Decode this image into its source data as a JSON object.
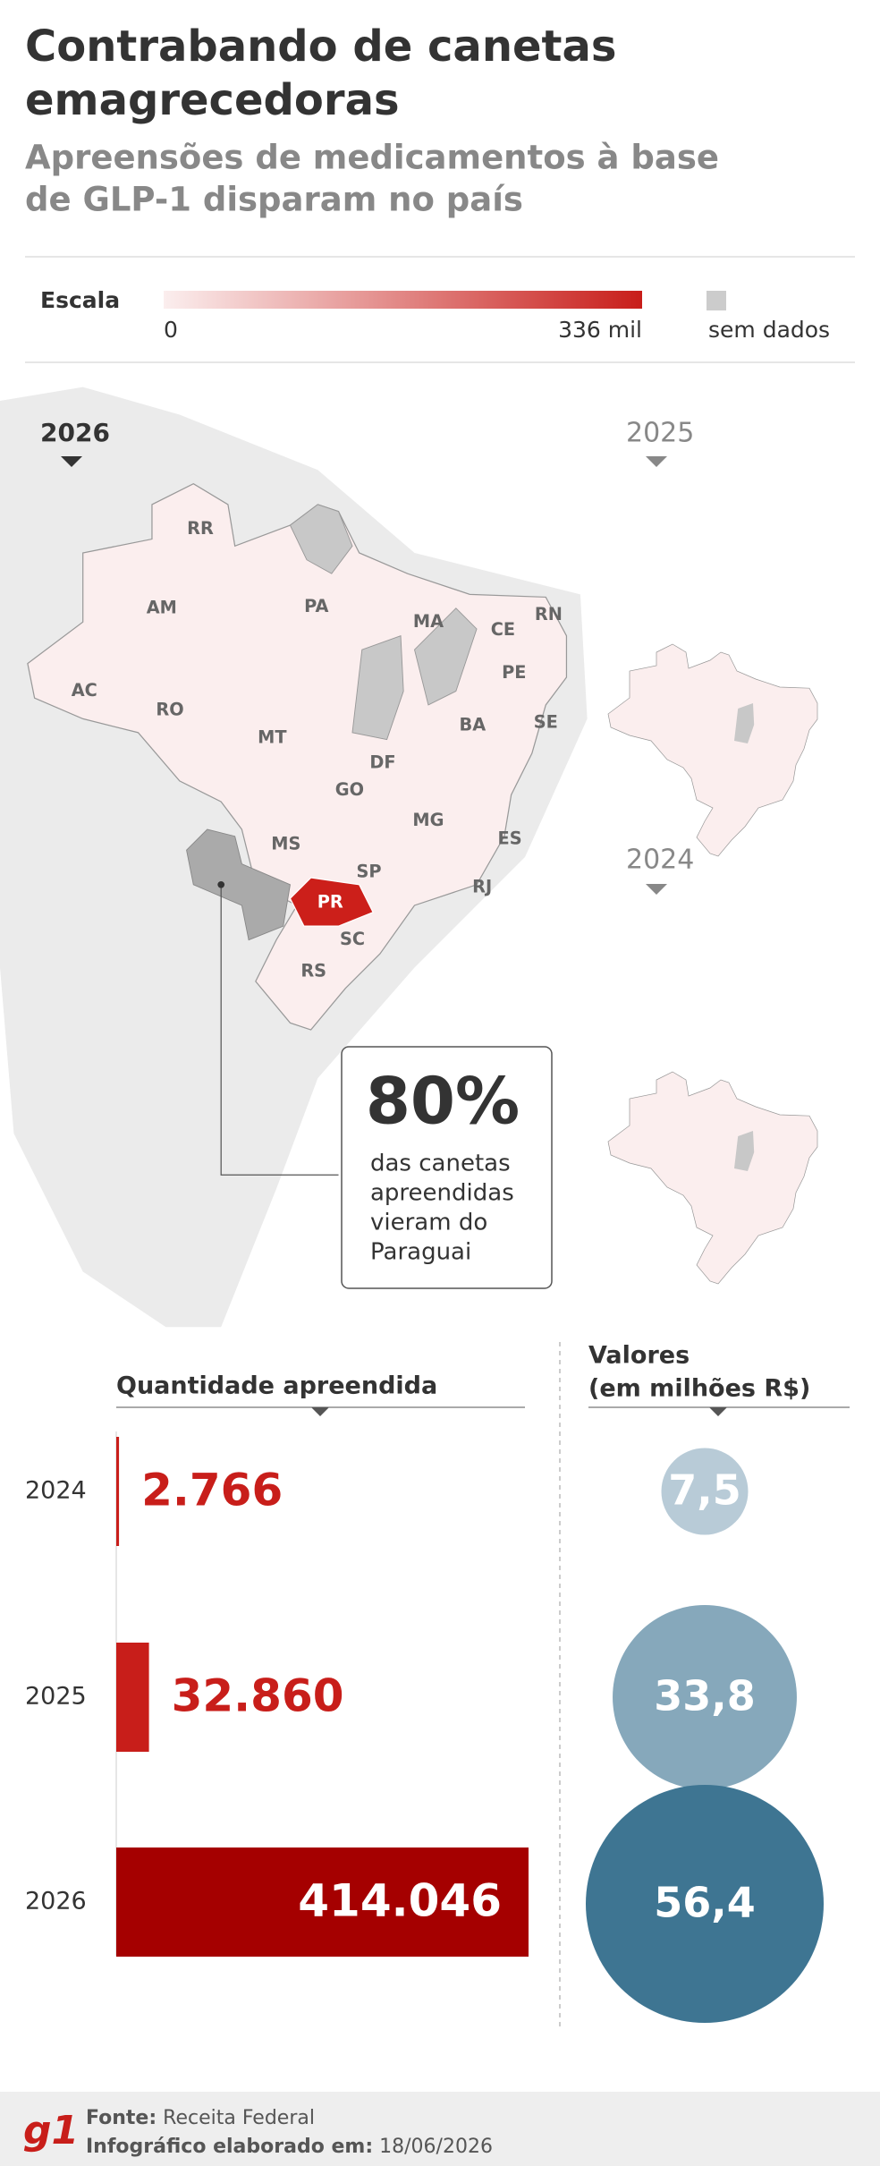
{
  "header": {
    "title_lines": [
      "Contrabando de canetas",
      "emagrecedoras"
    ],
    "subtitle_lines": [
      "Apreensões de medicamentos à base",
      "de GLP-1 disparam no país"
    ]
  },
  "scale": {
    "label": "Escala",
    "min_label": "0",
    "max_label": "336 mil",
    "no_data": "sem dados"
  },
  "map": {
    "main_year": "2026",
    "small_years": [
      "2025",
      "2024"
    ],
    "states": [
      "RR",
      "AM",
      "PA",
      "MA",
      "CE",
      "RN",
      "PE",
      "AC",
      "RO",
      "MT",
      "BA",
      "SE",
      "DF",
      "GO",
      "MG",
      "ES",
      "MS",
      "SP",
      "RJ",
      "PR",
      "SC",
      "RS"
    ]
  },
  "callout": {
    "headline": "80%",
    "lines": [
      "das canetas",
      "apreendidas",
      "vieram do",
      "Paraguai"
    ]
  },
  "chart_data": [
    {
      "type": "bar",
      "title": "Quantidade apreendida",
      "categories": [
        "2024",
        "2025",
        "2026"
      ],
      "values": [
        2766,
        32860,
        414046
      ],
      "value_labels": [
        "2.766",
        "32.860",
        "414.046"
      ],
      "colors": [
        "#c81e1a",
        "#c81e1a",
        "#a50000"
      ]
    },
    {
      "type": "bubble",
      "title": "Valores",
      "subtitle": "(em milhões R$)",
      "values": [
        7.5,
        33.8,
        56.4
      ],
      "value_labels": [
        "7,5",
        "33,8",
        "56,4"
      ],
      "colors": [
        "#b8cbd7",
        "#86a8bb",
        "#3e7592"
      ]
    }
  ],
  "footer": {
    "logo": "g1",
    "source_label": "Fonte:",
    "source": "Receita Federal",
    "date_label": "Infográfico elaborado em:",
    "date": "18/06/2026"
  }
}
